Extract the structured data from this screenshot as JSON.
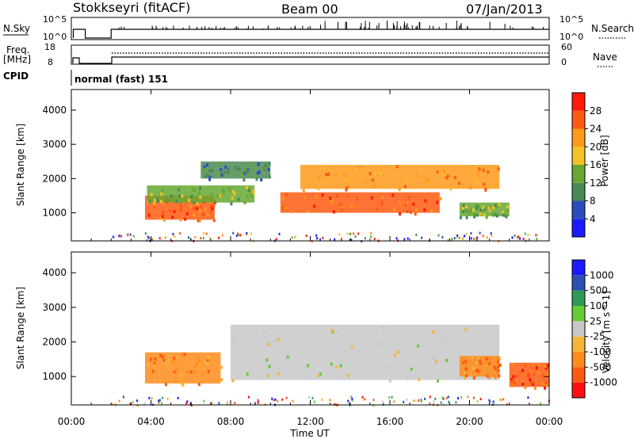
{
  "header": {
    "station": "Stokkseyri (fitACF)",
    "beam": "Beam 00",
    "date": "07/Jan/2013"
  },
  "top_panels": {
    "nsky_label": "N.Sky",
    "nsky_tick_top": "10^5",
    "nsky_tick_bottom": "10^0",
    "nsearch_label": "N.Search",
    "nsearch_tick_top": "10^5",
    "nsearch_tick_bottom": "10^0",
    "freq_label_1": "Freq.",
    "freq_label_2": "[MHz]",
    "freq_tick_top": "18",
    "freq_tick_bottom": "8",
    "nave_label": "Nave",
    "nave_tick_top": "60",
    "nave_tick_bottom": "0",
    "cpid_label": "CPID",
    "cpid_value": "normal (fast) 151"
  },
  "colors": {
    "power": [
      "#1a1aff",
      "#2a4dbd",
      "#4a8a55",
      "#66a832",
      "#f5c226",
      "#ff9a1a",
      "#ff5a12",
      "#ff1a0a"
    ],
    "velocity": [
      "#ff1010",
      "#ff5a10",
      "#ff8c1a",
      "#f5b536",
      "#c8c8c8",
      "#66cc33",
      "#2e9a55",
      "#2a50b0",
      "#1a1aff"
    ],
    "frame": "#000000"
  },
  "chart_data": [
    {
      "type": "heatmap",
      "panel": "power",
      "ylabel": "Slant Range [km]",
      "ylim": [
        180,
        4600
      ],
      "yticks": [
        "1000",
        "2000",
        "3000",
        "4000"
      ],
      "xlim": [
        "00:00",
        "24:00"
      ],
      "colorbar_label": "Power [dB]",
      "colorbar_ticks": [
        "4",
        "8",
        "12",
        "16",
        "20",
        "24",
        "28"
      ],
      "regions": [
        {
          "t0": 3.7,
          "t1": 7.2,
          "r0": 800,
          "r1": 1500,
          "value": 26
        },
        {
          "t0": 3.8,
          "t1": 9.2,
          "r0": 1300,
          "r1": 1800,
          "value": 14
        },
        {
          "t0": 10.5,
          "t1": 18.5,
          "r0": 1000,
          "r1": 1600,
          "value": 27
        },
        {
          "t0": 11.5,
          "t1": 21.5,
          "r0": 1700,
          "r1": 2400,
          "value": 20
        },
        {
          "t0": 19.5,
          "t1": 22.0,
          "r0": 900,
          "r1": 1300,
          "value": 15
        },
        {
          "t0": 6.5,
          "t1": 10.0,
          "r0": 2000,
          "r1": 2500,
          "value": 10
        }
      ]
    },
    {
      "type": "heatmap",
      "panel": "velocity",
      "ylabel": "Slant Range [km]",
      "ylim": [
        180,
        4600
      ],
      "yticks": [
        "1000",
        "2000",
        "3000",
        "4000"
      ],
      "xlim": [
        "00:00",
        "24:00"
      ],
      "xlabel": "Time UT",
      "xticks": [
        "00:00",
        "04:00",
        "08:00",
        "12:00",
        "16:00",
        "20:00",
        "00:00"
      ],
      "colorbar_label": "Velocity [m s^-1]",
      "colorbar_ticks": [
        "1000",
        "500",
        "100",
        "25",
        "-25",
        "-100",
        "-500",
        "-1000"
      ],
      "regions": [
        {
          "t0": 3.7,
          "t1": 7.5,
          "r0": 800,
          "r1": 1700,
          "value": -200
        },
        {
          "t0": 8.0,
          "t1": 21.5,
          "r0": 900,
          "r1": 2500,
          "value": 0
        },
        {
          "t0": 19.5,
          "t1": 21.5,
          "r0": 1000,
          "r1": 1600,
          "value": -300
        },
        {
          "t0": 22.0,
          "t1": 24.0,
          "r0": 700,
          "r1": 1400,
          "value": -600
        }
      ]
    }
  ]
}
